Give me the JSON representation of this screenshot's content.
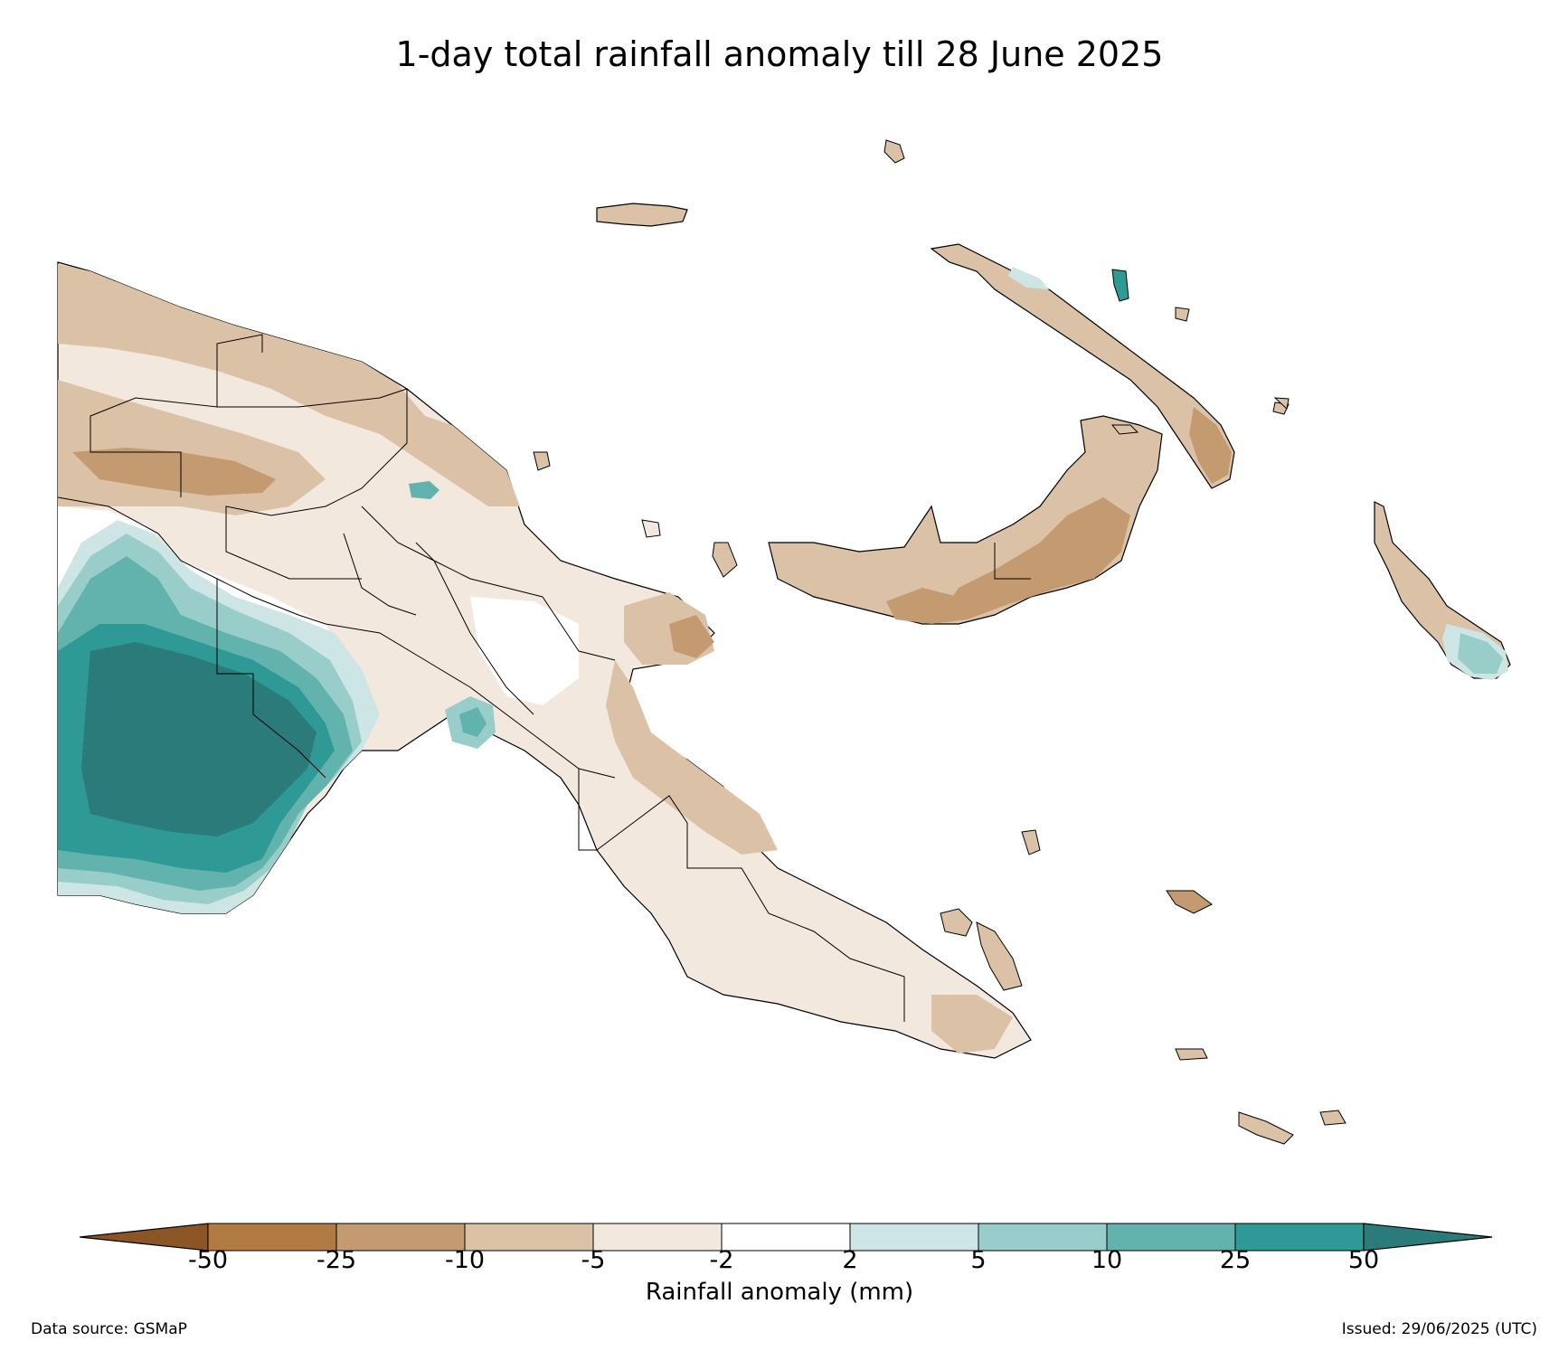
{
  "title": "1-day total rainfall anomaly till 28 June 2025",
  "colorbar": {
    "label": "Rainfall anomaly (mm)",
    "ticks": [
      "-50",
      "-25",
      "-10",
      "-5",
      "-2",
      "2",
      "5",
      "10",
      "25",
      "50"
    ],
    "colors": [
      "#8c5526",
      "#b07a42",
      "#c49a70",
      "#dbc2a7",
      "#f2e8de",
      "#ffffff",
      "#cde6e5",
      "#98cdca",
      "#62b2ae",
      "#2f9995",
      "#2a7b79"
    ],
    "extend": "both"
  },
  "palette": {
    "brown_light": "#f2e8de",
    "brown_medium": "#dbc2a7",
    "brown_dark": "#c49a70",
    "teal_light": "#cde6e5",
    "teal_medium": "#98cdca",
    "teal_strong": "#62b2ae",
    "teal_dark": "#2f9995",
    "teal_darkest": "#2a7b79"
  },
  "footer": {
    "source": "Data source: GSMaP",
    "issued": "Issued: 29/06/2025 (UTC)"
  }
}
